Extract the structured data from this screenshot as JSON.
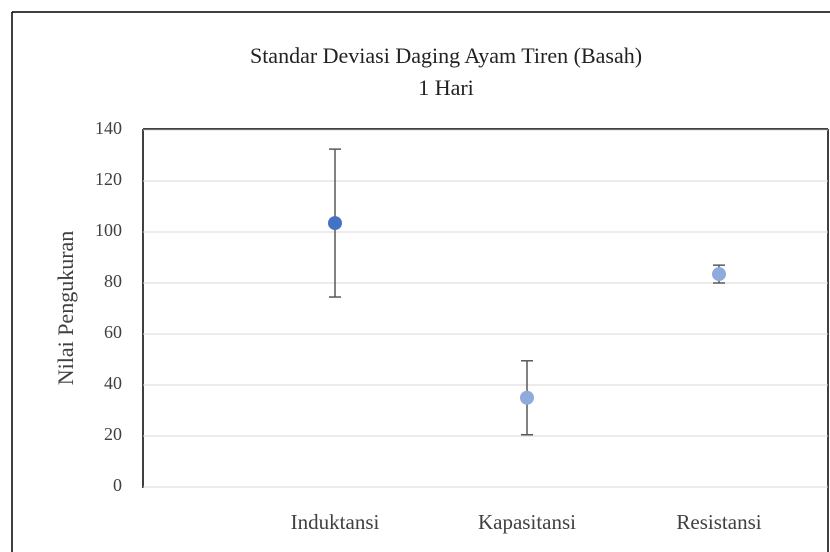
{
  "chart_data": {
    "type": "errorbar",
    "title": "Standar Deviasi Daging Ayam Tiren (Basah)",
    "subtitle": "1 Hari",
    "y_label": "Nilai Pengukuran",
    "categories": [
      "Induktansi",
      "Kapasitansi",
      "Resistansi"
    ],
    "values": [
      103.5,
      35,
      83.5
    ],
    "errors": [
      29,
      14.5,
      3.5
    ],
    "colors": [
      "#4472c4",
      "#8faadc",
      "#8faadc"
    ],
    "error_color": "#595959",
    "ylim": [
      0,
      140
    ],
    "yticks": [
      0,
      20,
      40,
      60,
      80,
      100,
      120,
      140
    ],
    "grid": true
  }
}
